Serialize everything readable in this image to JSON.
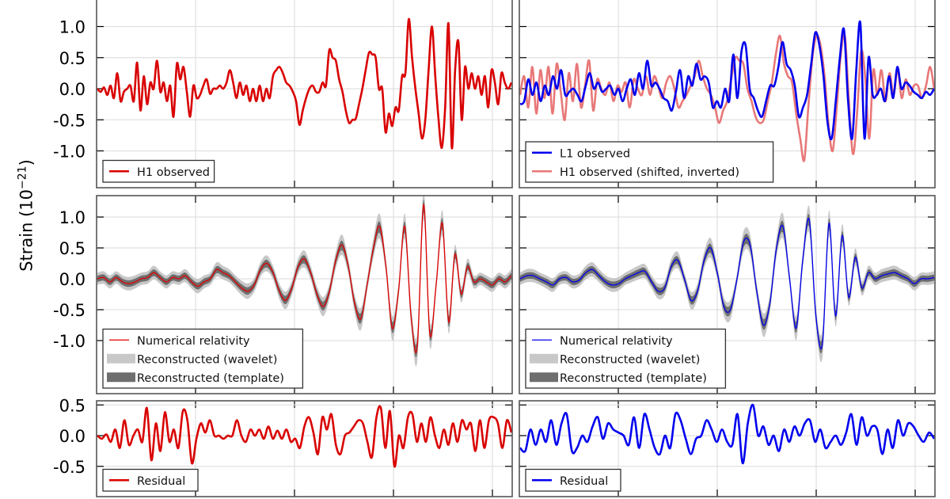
{
  "figure": {
    "ylabel_prefix": "Strain (10",
    "ylabel_exp": "−21",
    "ylabel_suffix": ")",
    "colors": {
      "h1": "#d90000",
      "l1": "#0000ee",
      "h1_shifted": "#e87878",
      "wavelet_band": "#c8c8c8",
      "template_band": "#6e6e6e",
      "grid": "#e0e0e0",
      "axes": "#555555"
    }
  },
  "chart_data": [
    {
      "id": "top-left",
      "type": "line",
      "title": "",
      "ylabel": "Strain (10^-21)",
      "ylim": [
        -1.6,
        1.45
      ],
      "yticks": [
        1.0,
        0.5,
        0.0,
        -0.5,
        -1.0
      ],
      "ytick_labels": [
        "1.0",
        "0.5",
        "0.0",
        "-0.5",
        "-1.0"
      ],
      "grid": true,
      "legend_position": "lower left",
      "legend": [
        "H1 observed"
      ],
      "series": [
        {
          "name": "H1 observed",
          "color": "#d90000",
          "values": [
            0.0,
            -0.05,
            0.02,
            -0.1,
            0.05,
            -0.15,
            0.25,
            -0.2,
            -0.05,
            0.0,
            0.05,
            -0.2,
            0.42,
            -0.35,
            0.2,
            -0.25,
            0.1,
            0.0,
            0.45,
            -0.05,
            0.1,
            -0.2,
            0.05,
            -0.45,
            0.4,
            0.15,
            0.35,
            -0.05,
            -0.45,
            0.05,
            -0.15,
            -0.1,
            0.05,
            0.15,
            -0.08,
            0.0,
            0.0,
            0.05,
            0.0,
            0.1,
            0.3,
            0.1,
            -0.15,
            0.1,
            -0.1,
            0.05,
            -0.2,
            0.0,
            -0.2,
            0.05,
            -0.2,
            0.0,
            -0.15,
            0.2,
            0.3,
            0.35,
            0.25,
            0.1,
            0.05,
            -0.05,
            -0.2,
            -0.58,
            -0.35,
            -0.15,
            0.0,
            0.05,
            -0.05,
            -0.05,
            0.1,
            0.05,
            0.62,
            0.5,
            0.45,
            0.15,
            -0.05,
            -0.35,
            -0.55,
            -0.5,
            -0.48,
            -0.25,
            0.0,
            0.3,
            0.58,
            0.55,
            0.5,
            0.0,
            0.0,
            -0.7,
            -0.4,
            -0.6,
            -0.3,
            -0.35,
            0.2,
            0.25,
            1.12,
            0.5,
            0.0,
            -0.4,
            -0.8,
            -0.5,
            0.3,
            1.0,
            0.2,
            -0.5,
            -0.95,
            -0.3,
            1.05,
            -0.95,
            0.3,
            0.75,
            -0.5,
            0.35,
            0.0,
            0.25,
            0.0,
            0.2,
            -0.1,
            0.2,
            -0.3,
            0.3,
            0.1,
            -0.25,
            0.25,
            0.1,
            0.0,
            0.1
          ]
        }
      ]
    },
    {
      "id": "top-right",
      "type": "line",
      "ylim": [
        -1.6,
        1.45
      ],
      "yticks": [
        1.0,
        0.5,
        0.0,
        -0.5,
        -1.0
      ],
      "grid": true,
      "legend_position": "lower left",
      "legend": [
        "L1 observed",
        "H1 observed (shifted, inverted)"
      ],
      "series": [
        {
          "name": "H1 observed (shifted, inverted)",
          "color": "#e87878",
          "values": [
            -0.1,
            0.2,
            -0.3,
            0.35,
            -0.4,
            0.3,
            -0.15,
            0.35,
            -0.4,
            0.4,
            -0.05,
            -0.5,
            0.25,
            -0.2,
            0.4,
            -0.3,
            0.05,
            0.45,
            -0.35,
            0.15,
            0.0,
            -0.1,
            0.1,
            -0.2,
            0.05,
            -0.05,
            0.1,
            -0.3,
            0.15,
            0.0,
            -0.1,
            0.2,
            -0.1,
            0.2,
            0.05,
            -0.15,
            0.1,
            0.2,
            0.0,
            -0.3,
            -0.2,
            -0.1,
            0.05,
            0.2,
            0.45,
            0.2,
            0.0,
            -0.1,
            -0.3,
            -0.55,
            -0.35,
            -0.2,
            0.15,
            0.5,
            0.45,
            0.4,
            0.0,
            -0.2,
            -0.45,
            -0.55,
            -0.5,
            -0.2,
            0.1,
            0.55,
            0.85,
            0.4,
            0.2,
            0.1,
            -0.4,
            -0.8,
            -1.15,
            -0.3,
            0.5,
            0.85,
            0.7,
            0.2,
            -0.6,
            -1.0,
            -0.3,
            0.55,
            0.85,
            -0.2,
            -1.05,
            -0.4,
            0.6,
            0.2,
            -0.8,
            0.3,
            -0.1,
            0.3,
            -0.2,
            0.25,
            -0.1,
            0.3,
            -0.15,
            0.15,
            -0.1,
            0.05,
            0.05,
            -0.15,
            0.05,
            0.35,
            0.0
          ]
        },
        {
          "name": "L1 observed",
          "color": "#0000ee",
          "values": [
            -0.25,
            -0.2,
            0.15,
            -0.1,
            0.1,
            -0.2,
            0.05,
            -0.1,
            0.2,
            0.0,
            0.3,
            -0.1,
            -0.05,
            0.0,
            -0.1,
            -0.2,
            0.05,
            0.25,
            0.0,
            0.1,
            -0.05,
            0.0,
            0.05,
            -0.1,
            0.0,
            -0.2,
            0.0,
            0.15,
            -0.1,
            0.25,
            0.0,
            0.45,
            0.05,
            0.1,
            0.0,
            -0.15,
            -0.2,
            -0.35,
            -0.05,
            0.3,
            -0.15,
            0.2,
            0.05,
            0.4,
            0.15,
            0.2,
            0.1,
            -0.3,
            -0.2,
            -0.3,
            0.0,
            -0.2,
            0.55,
            -0.15,
            0.6,
            0.7,
            0.0,
            -0.15,
            -0.35,
            -0.45,
            -0.2,
            0.05,
            0.05,
            0.35,
            0.75,
            0.4,
            0.3,
            0.05,
            -0.45,
            -0.3,
            -0.1,
            0.4,
            0.9,
            0.7,
            0.2,
            -0.55,
            -0.8,
            -0.2,
            0.5,
            0.95,
            -0.2,
            -0.8,
            0.3,
            1.05,
            -0.8,
            0.5,
            -0.1,
            -0.1,
            0.0,
            -0.2,
            0.2,
            -0.15,
            0.35,
            0.0,
            0.1,
            0.05,
            -0.05,
            -0.1,
            -0.15,
            -0.05,
            -0.1,
            0.0
          ]
        }
      ]
    },
    {
      "id": "middle-left",
      "type": "area",
      "ylim": [
        -1.7,
        1.45
      ],
      "yticks": [
        1.0,
        0.5,
        0.0,
        -0.5,
        -1.0
      ],
      "ytick_labels": [
        "1.0",
        "0.5",
        "0.0",
        "-0.5",
        "-1.0"
      ],
      "grid": true,
      "legend_position": "lower left",
      "legend": [
        "Numerical relativity",
        "Reconstructed (wavelet)",
        "Reconstructed (template)"
      ],
      "series": [
        {
          "name": "Numerical relativity",
          "color": "#e00000",
          "values": [
            0.0,
            0.02,
            -0.05,
            0.02,
            -0.05,
            -0.08,
            -0.05,
            0.0,
            0.02,
            0.1,
            0.02,
            -0.05,
            0.02,
            0.0,
            0.05,
            -0.05,
            -0.12,
            -0.05,
            0.0,
            0.15,
            0.1,
            0.05,
            -0.05,
            -0.15,
            -0.2,
            -0.1,
            0.15,
            0.25,
            0.1,
            -0.2,
            -0.35,
            -0.15,
            0.2,
            0.32,
            0.1,
            -0.25,
            -0.45,
            -0.2,
            0.3,
            0.55,
            0.2,
            -0.4,
            -0.65,
            -0.1,
            0.5,
            0.85,
            0.2,
            -0.8,
            -0.2,
            0.85,
            -0.6,
            -1.1,
            1.2,
            -0.9,
            -0.1,
            0.9,
            -0.7,
            0.4,
            -0.25,
            0.2,
            -0.05,
            0.0,
            -0.05,
            -0.1,
            0.0,
            -0.05,
            0.05
          ]
        },
        {
          "name": "Reconstructed (wavelet)",
          "color": "#c8c8c8",
          "band_halfwidth": 0.1
        },
        {
          "name": "Reconstructed (template)",
          "color": "#6e6e6e",
          "band_halfwidth": 0.05
        }
      ]
    },
    {
      "id": "middle-right",
      "type": "area",
      "ylim": [
        -1.7,
        1.45
      ],
      "yticks": [
        1.0,
        0.5,
        0.0,
        -0.5,
        -1.0
      ],
      "grid": true,
      "legend_position": "lower left",
      "legend": [
        "Numerical relativity",
        "Reconstructed (wavelet)",
        "Reconstructed (template)"
      ],
      "series": [
        {
          "name": "Numerical relativity",
          "color": "#0000ee",
          "values": [
            0.0,
            0.05,
            0.05,
            0.0,
            -0.05,
            -0.1,
            0.0,
            0.02,
            -0.05,
            -0.02,
            0.1,
            0.15,
            0.05,
            -0.05,
            -0.1,
            -0.08,
            0.0,
            0.05,
            0.1,
            0.12,
            -0.05,
            -0.2,
            -0.15,
            0.2,
            0.3,
            0.0,
            -0.35,
            -0.2,
            0.3,
            0.5,
            0.1,
            -0.45,
            -0.5,
            0.0,
            0.6,
            0.55,
            -0.2,
            -0.75,
            -0.4,
            0.5,
            0.85,
            0.0,
            -0.8,
            0.3,
            0.95,
            -0.6,
            -1.05,
            0.9,
            -0.6,
            0.7,
            -0.3,
            0.35,
            -0.15,
            0.1,
            0.0,
            0.05,
            0.08,
            0.1,
            0.05,
            0.0,
            -0.08,
            0.0,
            0.0,
            0.02
          ]
        },
        {
          "name": "Reconstructed (wavelet)",
          "color": "#c8c8c8",
          "band_halfwidth": 0.1
        },
        {
          "name": "Reconstructed (template)",
          "color": "#6e6e6e",
          "band_halfwidth": 0.05
        }
      ]
    },
    {
      "id": "bottom-left",
      "type": "line",
      "ylim": [
        -0.95,
        0.58
      ],
      "yticks": [
        0.5,
        0.0,
        -0.5
      ],
      "ytick_labels": [
        "0.5",
        "0.0",
        "-0.5"
      ],
      "grid": true,
      "legend_position": "lower left",
      "legend": [
        "Residual"
      ],
      "series": [
        {
          "name": "Residual",
          "color": "#d90000",
          "values": [
            0.0,
            -0.05,
            0.02,
            -0.1,
            0.1,
            -0.2,
            0.25,
            -0.15,
            0.0,
            0.1,
            -0.1,
            0.45,
            -0.4,
            0.2,
            -0.25,
            0.38,
            -0.1,
            0.1,
            -0.2,
            0.4,
            0.25,
            -0.45,
            -0.05,
            0.2,
            0.05,
            0.25,
            0.0,
            0.0,
            -0.05,
            0.0,
            0.0,
            0.25,
            0.0,
            -0.1,
            0.1,
            0.0,
            0.1,
            -0.05,
            0.15,
            -0.05,
            0.08,
            -0.05,
            0.1,
            -0.1,
            -0.05,
            -0.2,
            0.15,
            0.3,
            0.05,
            -0.3,
            0.3,
            0.1,
            0.35,
            -0.15,
            -0.3,
            0.0,
            0.05,
            0.15,
            0.25,
            0.2,
            -0.1,
            -0.35,
            0.3,
            0.45,
            -0.2,
            0.4,
            -0.5,
            0.0,
            -0.2,
            0.3,
            0.35,
            -0.1,
            0.2,
            -0.1,
            0.3,
            0.0,
            -0.2,
            0.1,
            -0.15,
            0.2,
            -0.1,
            0.25,
            0.1,
            0.2,
            -0.25,
            0.25,
            -0.2,
            0.25,
            0.3,
            0.2,
            -0.2,
            0.25,
            0.05
          ]
        }
      ]
    },
    {
      "id": "bottom-right",
      "type": "line",
      "ylim": [
        -0.95,
        0.58
      ],
      "yticks": [
        0.5,
        0.0,
        -0.5
      ],
      "grid": true,
      "legend_position": "lower left",
      "legend": [
        "Residual"
      ],
      "series": [
        {
          "name": "Residual",
          "color": "#0000ee",
          "values": [
            -0.2,
            -0.25,
            0.1,
            -0.15,
            0.1,
            -0.1,
            0.25,
            -0.15,
            0.2,
            0.35,
            -0.25,
            -0.2,
            0.0,
            -0.1,
            0.15,
            0.3,
            -0.05,
            0.2,
            0.1,
            0.05,
            0.0,
            -0.15,
            0.3,
            -0.2,
            0.35,
            0.1,
            -0.2,
            -0.3,
            0.0,
            -0.2,
            0.35,
            0.25,
            -0.05,
            -0.3,
            -0.05,
            0.0,
            0.25,
            0.1,
            -0.1,
            0.1,
            -0.1,
            -0.15,
            0.35,
            -0.45,
            0.2,
            0.5,
            0.0,
            0.15,
            -0.15,
            0.0,
            -0.25,
            0.1,
            -0.1,
            0.15,
            0.0,
            0.2,
            0.25,
            -0.1,
            0.1,
            -0.2,
            -0.1,
            0.0,
            -0.15,
            0.05,
            0.35,
            -0.15,
            0.3,
            0.0,
            0.15,
            0.1,
            -0.3,
            0.1,
            -0.2,
            0.25,
            0.0,
            0.2,
            0.15,
            0.0,
            -0.1,
            0.05,
            -0.05
          ]
        }
      ]
    }
  ]
}
